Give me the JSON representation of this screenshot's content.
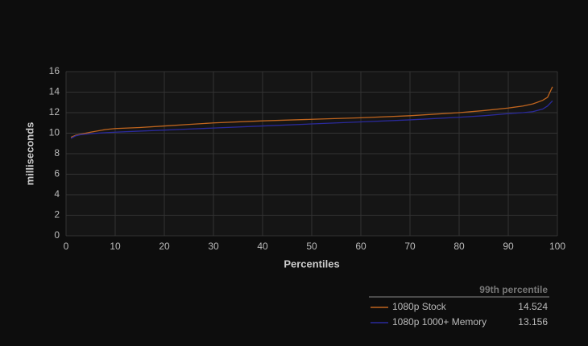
{
  "chart_data": {
    "type": "line",
    "xlabel": "Percentiles",
    "ylabel": "milliseconds",
    "x": [
      1,
      2,
      3,
      5,
      8,
      10,
      15,
      20,
      25,
      30,
      40,
      50,
      60,
      70,
      80,
      85,
      90,
      93,
      95,
      97,
      98,
      99
    ],
    "series": [
      {
        "name": "1080p Stock",
        "color": "#c0651e",
        "p99": 14.524,
        "values": [
          9.6,
          9.8,
          9.9,
          10.1,
          10.35,
          10.45,
          10.55,
          10.7,
          10.85,
          11.0,
          11.2,
          11.35,
          11.5,
          11.7,
          12.0,
          12.2,
          12.45,
          12.65,
          12.85,
          13.2,
          13.5,
          14.524
        ]
      },
      {
        "name": "1080p 1000+ Memory",
        "color": "#2a2a9c",
        "p99": 13.156,
        "values": [
          9.5,
          9.75,
          9.85,
          9.95,
          10.05,
          10.1,
          10.2,
          10.3,
          10.4,
          10.5,
          10.7,
          10.9,
          11.1,
          11.3,
          11.55,
          11.7,
          11.9,
          12.0,
          12.1,
          12.35,
          12.65,
          13.156
        ]
      }
    ],
    "legend_header": "99th percentile",
    "xlim": [
      0,
      100
    ],
    "xticks": [
      0,
      10,
      20,
      30,
      40,
      50,
      60,
      70,
      80,
      90,
      100
    ],
    "ylim": [
      0,
      16
    ],
    "yticks": [
      0,
      2,
      4,
      6,
      8,
      10,
      12,
      14,
      16
    ],
    "grid": true
  }
}
